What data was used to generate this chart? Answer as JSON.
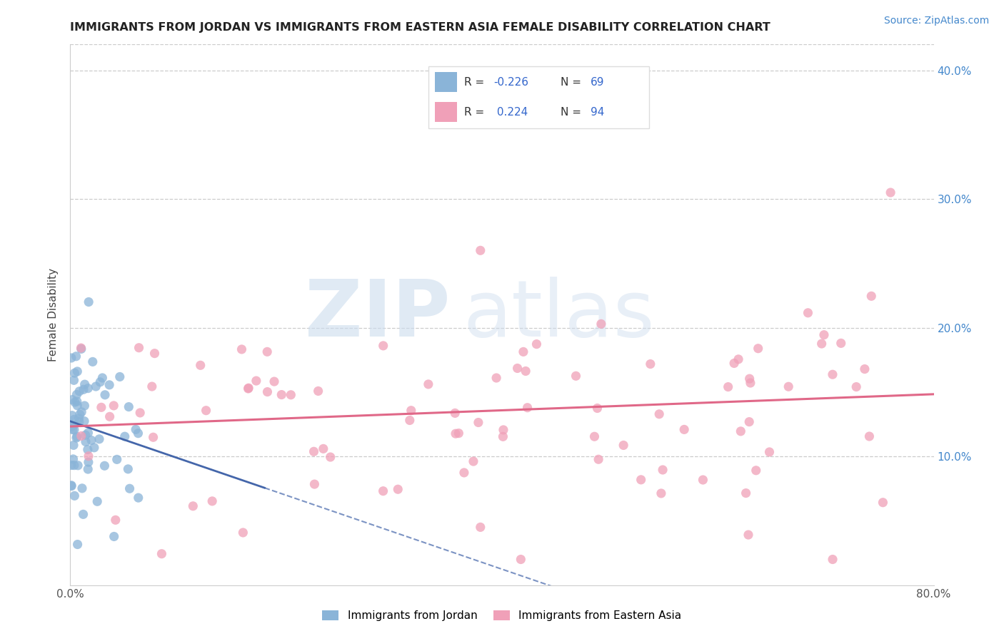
{
  "title": "IMMIGRANTS FROM JORDAN VS IMMIGRANTS FROM EASTERN ASIA FEMALE DISABILITY CORRELATION CHART",
  "source": "Source: ZipAtlas.com",
  "ylabel": "Female Disability",
  "xlim": [
    0.0,
    0.8
  ],
  "ylim": [
    0.0,
    0.42
  ],
  "x_tick_positions": [
    0.0,
    0.1,
    0.2,
    0.3,
    0.4,
    0.5,
    0.6,
    0.7,
    0.8
  ],
  "x_tick_labels": [
    "0.0%",
    "",
    "",
    "",
    "",
    "",
    "",
    "",
    "80.0%"
  ],
  "y_tick_positions": [
    0.1,
    0.2,
    0.3,
    0.4
  ],
  "y_tick_labels": [
    "10.0%",
    "20.0%",
    "30.0%",
    "40.0%"
  ],
  "jordan_color": "#8ab4d8",
  "eastern_asia_color": "#f0a0b8",
  "jordan_line_color": "#4466aa",
  "eastern_asia_line_color": "#e06888",
  "r_jordan": -0.226,
  "n_jordan": 69,
  "r_eastern_asia": 0.224,
  "n_eastern_asia": 94,
  "legend_label_jordan": "Immigrants from Jordan",
  "legend_label_eastern_asia": "Immigrants from Eastern Asia",
  "watermark_zip": "ZIP",
  "watermark_atlas": "atlas",
  "background_color": "#ffffff",
  "jordan_seed": 42,
  "eastern_seed": 99
}
